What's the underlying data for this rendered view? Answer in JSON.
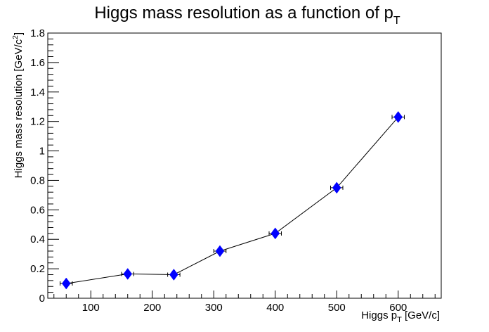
{
  "chart_data": {
    "type": "scatter",
    "title": {
      "main": "Higgs mass resolution as a function of p",
      "sub": "T"
    },
    "xlabel": {
      "pre": "Higgs p",
      "sub": "T",
      "post": " [GeV/c]"
    },
    "ylabel": {
      "pre": "Higgs mass resolution [GeV/c",
      "sup": "2",
      "post": "]"
    },
    "xlim": [
      30,
      670
    ],
    "ylim": [
      0,
      1.8
    ],
    "xticks": [
      "100",
      "200",
      "300",
      "400",
      "500",
      "600"
    ],
    "xtick_values": [
      100,
      200,
      300,
      400,
      500,
      600
    ],
    "yticks": [
      "0",
      "0.2",
      "0.4",
      "0.6",
      "0.8",
      "1",
      "1.2",
      "1.4",
      "1.6",
      "1.8"
    ],
    "ytick_values": [
      0,
      0.2,
      0.4,
      0.6,
      0.8,
      1.0,
      1.2,
      1.4,
      1.6,
      1.8
    ],
    "series": [
      {
        "marker": "diamond",
        "color": "#0000ff",
        "line_color": "#000000",
        "x": [
          60,
          160,
          235,
          310,
          400,
          500,
          600
        ],
        "y": [
          0.1,
          0.165,
          0.16,
          0.32,
          0.44,
          0.75,
          1.23
        ],
        "xerr": [
          10,
          10,
          10,
          10,
          10,
          10,
          10
        ]
      }
    ],
    "grid": false,
    "legend": "none"
  }
}
